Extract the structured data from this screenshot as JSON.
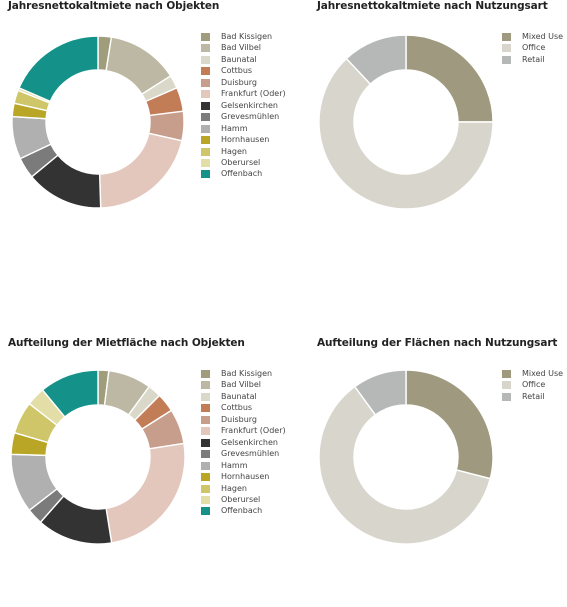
{
  "colors": {
    "bad_kissigen": "#a09d7c",
    "bad_vilbel": "#bcb8a3",
    "baunatal": "#dad8c9",
    "cottbus": "#c27d57",
    "duisburg": "#c79e8b",
    "frankfurt_oder": "#e3c7bc",
    "gelsenkirchen": "#333333",
    "gravesmuehlen": "#7b7b7b",
    "hamm": "#b0b0b0",
    "hornhausen": "#b9a626",
    "hagen": "#cfc569",
    "oberursel": "#e3dda8",
    "offenbach": "#14928a",
    "mixed_use": "#9f9a7f",
    "office": "#d8d6cc",
    "retail": "#b6b8b8"
  },
  "chart_data": [
    {
      "type": "pie",
      "title": "Jahresnettokaltmiete nach Objekten",
      "categories": [
        "Bad Kissigen",
        "Bad Vilbel",
        "Baunatal",
        "Cottbus",
        "Duisburg",
        "Frankfurt (Oder)",
        "Gelsenkirchen",
        "Grevesmühlen",
        "Hamm",
        "Hornhausen",
        "Hagen",
        "Oberursel",
        "Offenbach"
      ],
      "values": [
        2.5,
        13.5,
        2.5,
        4.5,
        5.5,
        21,
        14.5,
        4,
        8,
        2.5,
        2.5,
        0.5,
        18.5
      ],
      "color_keys": [
        "bad_kissigen",
        "bad_vilbel",
        "baunatal",
        "cottbus",
        "duisburg",
        "frankfurt_oder",
        "gelsenkirchen",
        "gravesmuehlen",
        "hamm",
        "hornhausen",
        "hagen",
        "oberursel",
        "offenbach"
      ],
      "legend": "right"
    },
    {
      "type": "pie",
      "title": "Jahresnettokaltmiete nach Nutzungsart",
      "categories": [
        "Mixed Use",
        "Office",
        "Retail"
      ],
      "values": [
        25,
        63,
        12
      ],
      "color_keys": [
        "mixed_use",
        "office",
        "retail"
      ],
      "legend": "right"
    },
    {
      "type": "pie",
      "title": "Aufteilung der Mietfläche nach Objekten",
      "categories": [
        "Bad Kissigen",
        "Bad Vilbel",
        "Baunatal",
        "Cottbus",
        "Duisburg",
        "Frankfurt (Oder)",
        "Gelsenkirchen",
        "Grevesmühlen",
        "Hamm",
        "Hornhausen",
        "Hagen",
        "Oberursel",
        "Offenbach"
      ],
      "values": [
        2,
        8,
        2.5,
        3.5,
        6.5,
        25,
        14,
        3,
        11,
        4,
        6,
        3.5,
        11
      ],
      "color_keys": [
        "bad_kissigen",
        "bad_vilbel",
        "baunatal",
        "cottbus",
        "duisburg",
        "frankfurt_oder",
        "gelsenkirchen",
        "gravesmuehlen",
        "hamm",
        "hornhausen",
        "hagen",
        "oberursel",
        "offenbach"
      ],
      "legend": "right"
    },
    {
      "type": "pie",
      "title": "Aufteilung der Flächen nach Nutzungsart",
      "categories": [
        "Mixed Use",
        "Office",
        "Retail"
      ],
      "values": [
        29,
        61,
        10
      ],
      "color_keys": [
        "mixed_use",
        "office",
        "retail"
      ],
      "legend": "right"
    }
  ]
}
